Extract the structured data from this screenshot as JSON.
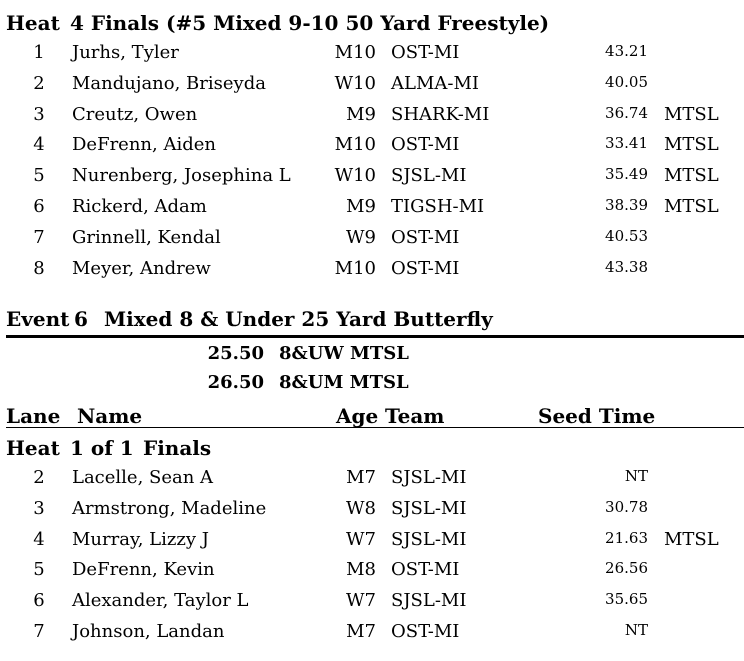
{
  "heat4": {
    "heading_label": "Heat",
    "heading_title": "4 Finals (#5 Mixed 9-10 50 Yard Freestyle)",
    "rows": [
      {
        "lane": "1",
        "name": "Jurhs, Tyler",
        "age": "M10",
        "team": "OST-MI",
        "time": "43.21",
        "std": ""
      },
      {
        "lane": "2",
        "name": "Mandujano, Briseyda",
        "age": "W10",
        "team": "ALMA-MI",
        "time": "40.05",
        "std": ""
      },
      {
        "lane": "3",
        "name": "Creutz, Owen",
        "age": "M9",
        "team": "SHARK-MI",
        "time": "36.74",
        "std": "MTSL"
      },
      {
        "lane": "4",
        "name": "DeFrenn, Aiden",
        "age": "M10",
        "team": "OST-MI",
        "time": "33.41",
        "std": "MTSL"
      },
      {
        "lane": "5",
        "name": "Nurenberg, Josephina L",
        "age": "W10",
        "team": "SJSL-MI",
        "time": "35.49",
        "std": "MTSL"
      },
      {
        "lane": "6",
        "name": "Rickerd, Adam",
        "age": "M9",
        "team": "TIGSH-MI",
        "time": "38.39",
        "std": "MTSL"
      },
      {
        "lane": "7",
        "name": "Grinnell, Kendal",
        "age": "W9",
        "team": "OST-MI",
        "time": "40.53",
        "std": ""
      },
      {
        "lane": "8",
        "name": "Meyer, Andrew",
        "age": "M10",
        "team": "OST-MI",
        "time": "43.38",
        "std": ""
      }
    ]
  },
  "event6": {
    "label": "Event",
    "number": "6",
    "title": "Mixed 8 & Under 25 Yard Butterfly",
    "standards": [
      {
        "time": "25.50",
        "label": "8&UW MTSL"
      },
      {
        "time": "26.50",
        "label": "8&UM MTSL"
      }
    ],
    "columns": {
      "lane": "Lane",
      "name": "Name",
      "age": "Age",
      "team": "Team",
      "seed": "Seed Time"
    },
    "heat_label": "Heat",
    "heat_title": "1 of 1",
    "heat_round": "Finals",
    "rows": [
      {
        "lane": "2",
        "name": "Lacelle, Sean A",
        "age": "M7",
        "team": "SJSL-MI",
        "time": "NT",
        "std": ""
      },
      {
        "lane": "3",
        "name": "Armstrong, Madeline",
        "age": "W8",
        "team": "SJSL-MI",
        "time": "30.78",
        "std": ""
      },
      {
        "lane": "4",
        "name": "Murray, Lizzy J",
        "age": "W7",
        "team": "SJSL-MI",
        "time": "21.63",
        "std": "MTSL"
      },
      {
        "lane": "5",
        "name": "DeFrenn, Kevin",
        "age": "M8",
        "team": "OST-MI",
        "time": "26.56",
        "std": ""
      },
      {
        "lane": "6",
        "name": "Alexander, Taylor L",
        "age": "W7",
        "team": "SJSL-MI",
        "time": "35.65",
        "std": ""
      },
      {
        "lane": "7",
        "name": "Johnson, Landan",
        "age": "M7",
        "team": "OST-MI",
        "time": "NT",
        "std": ""
      }
    ]
  }
}
